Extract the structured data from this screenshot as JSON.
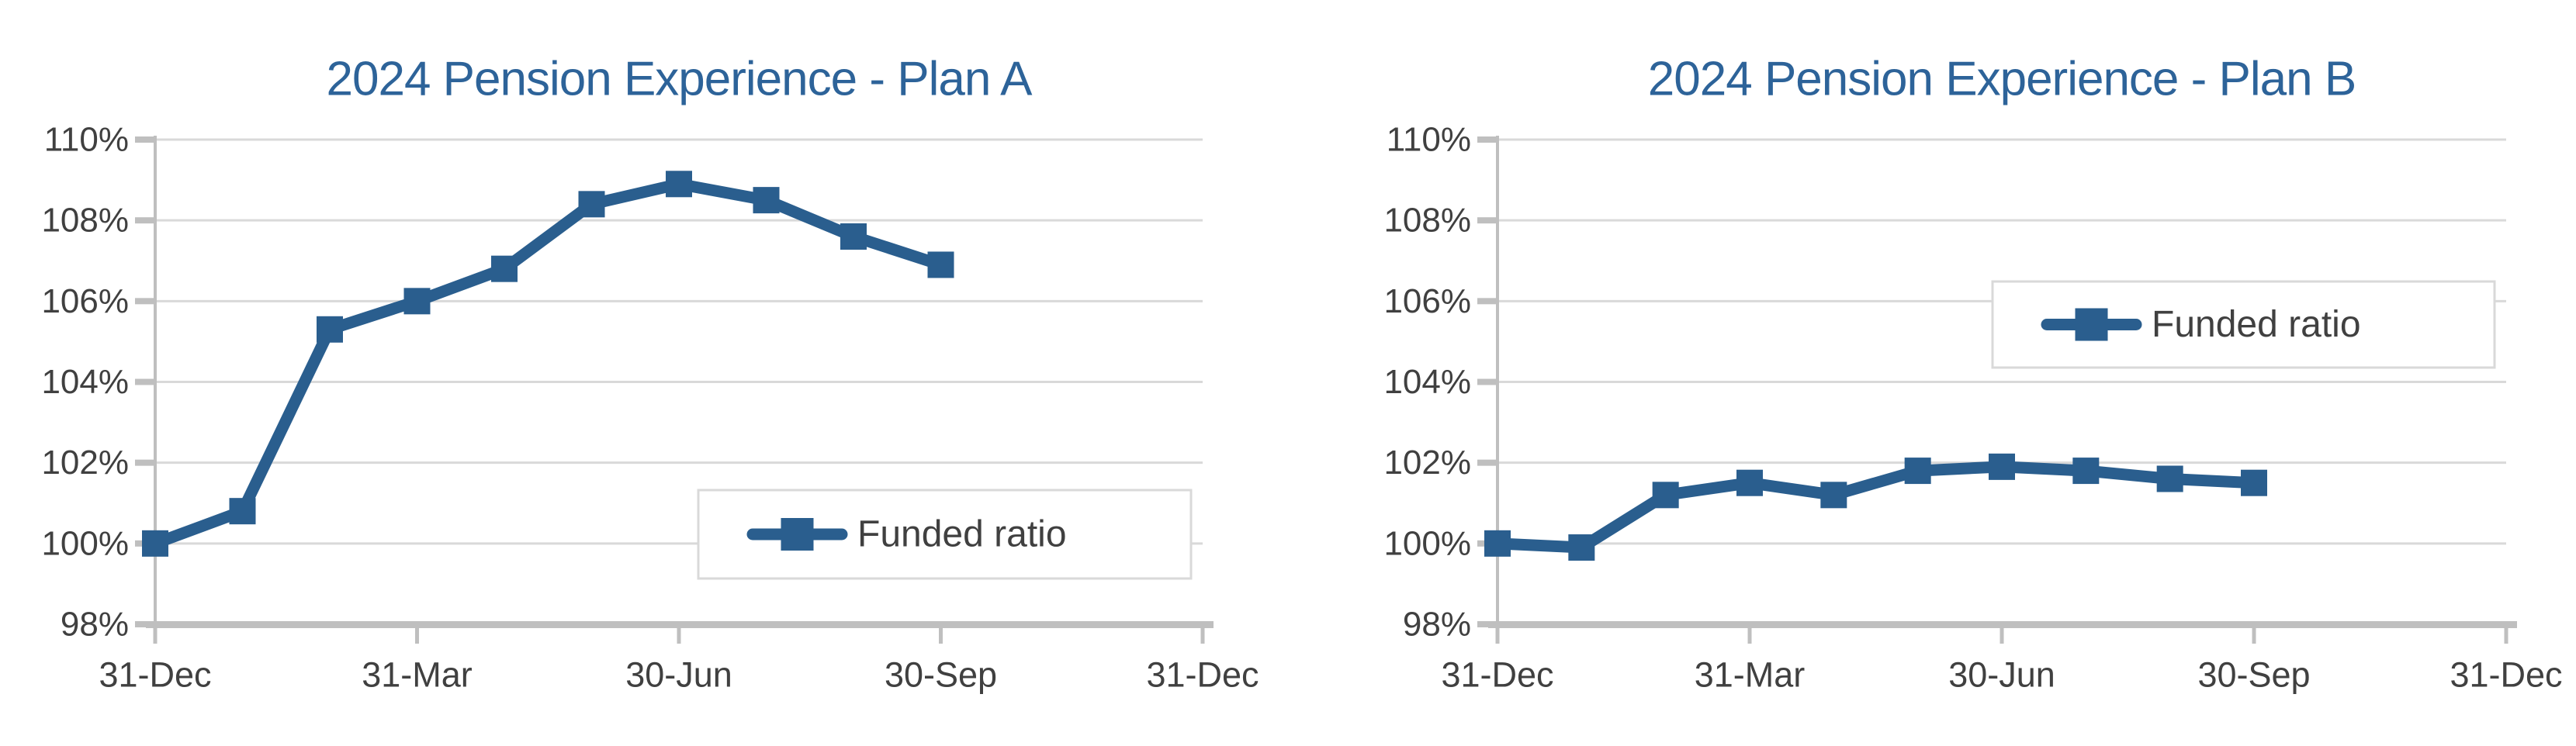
{
  "page": {
    "background": "#FFFFFF"
  },
  "colors": {
    "series_blue": "#2A5E8E",
    "title_blue": "#2D6399",
    "gridline_gray": "#D9D9D9",
    "axis_gray": "#BFBFBF",
    "label_gray": "#404040",
    "legend_border_gray": "#D9D9D9",
    "legend_fill": "#FFFFFF"
  },
  "chart_data": [
    {
      "type": "line",
      "title": "2024 Pension Experience - Plan A",
      "xlabel": "",
      "ylabel": "",
      "ylim": [
        98,
        110
      ],
      "ytick_step": 2,
      "y_tick_labels": [
        "98%",
        "100%",
        "102%",
        "104%",
        "106%",
        "108%",
        "110%"
      ],
      "x_tick_labels": [
        "31-Dec",
        "31-Mar",
        "30-Jun",
        "30-Sep",
        "31-Dec"
      ],
      "x_axis_span_months": 12,
      "grid": "horizontal",
      "marker": "square",
      "categories": [
        "31-Dec",
        "31-Jan",
        "29-Feb",
        "31-Mar",
        "30-Apr",
        "31-May",
        "30-Jun",
        "31-Jul",
        "31-Aug",
        "30-Sep"
      ],
      "series": [
        {
          "name": "Funded ratio",
          "values": [
            100.0,
            100.8,
            105.3,
            106.0,
            106.8,
            108.4,
            108.9,
            108.5,
            107.6,
            106.9
          ]
        }
      ],
      "legend": {
        "label": "Funded ratio",
        "position": "inside-bottom-right",
        "border": true
      }
    },
    {
      "type": "line",
      "title": "2024 Pension Experience - Plan B",
      "xlabel": "",
      "ylabel": "",
      "ylim": [
        98,
        110
      ],
      "ytick_step": 2,
      "y_tick_labels": [
        "98%",
        "100%",
        "102%",
        "104%",
        "106%",
        "108%",
        "110%"
      ],
      "x_tick_labels": [
        "31-Dec",
        "31-Mar",
        "30-Jun",
        "30-Sep",
        "31-Dec"
      ],
      "x_axis_span_months": 12,
      "grid": "horizontal",
      "marker": "square",
      "categories": [
        "31-Dec",
        "31-Jan",
        "29-Feb",
        "31-Mar",
        "30-Apr",
        "31-May",
        "30-Jun",
        "31-Jul",
        "31-Aug",
        "30-Sep"
      ],
      "series": [
        {
          "name": "Funded ratio",
          "values": [
            100.0,
            99.9,
            101.2,
            101.5,
            101.2,
            101.8,
            101.9,
            101.8,
            101.6,
            101.5
          ]
        }
      ],
      "legend": {
        "label": "Funded ratio",
        "position": "inside-middle-right",
        "border": true
      }
    }
  ]
}
